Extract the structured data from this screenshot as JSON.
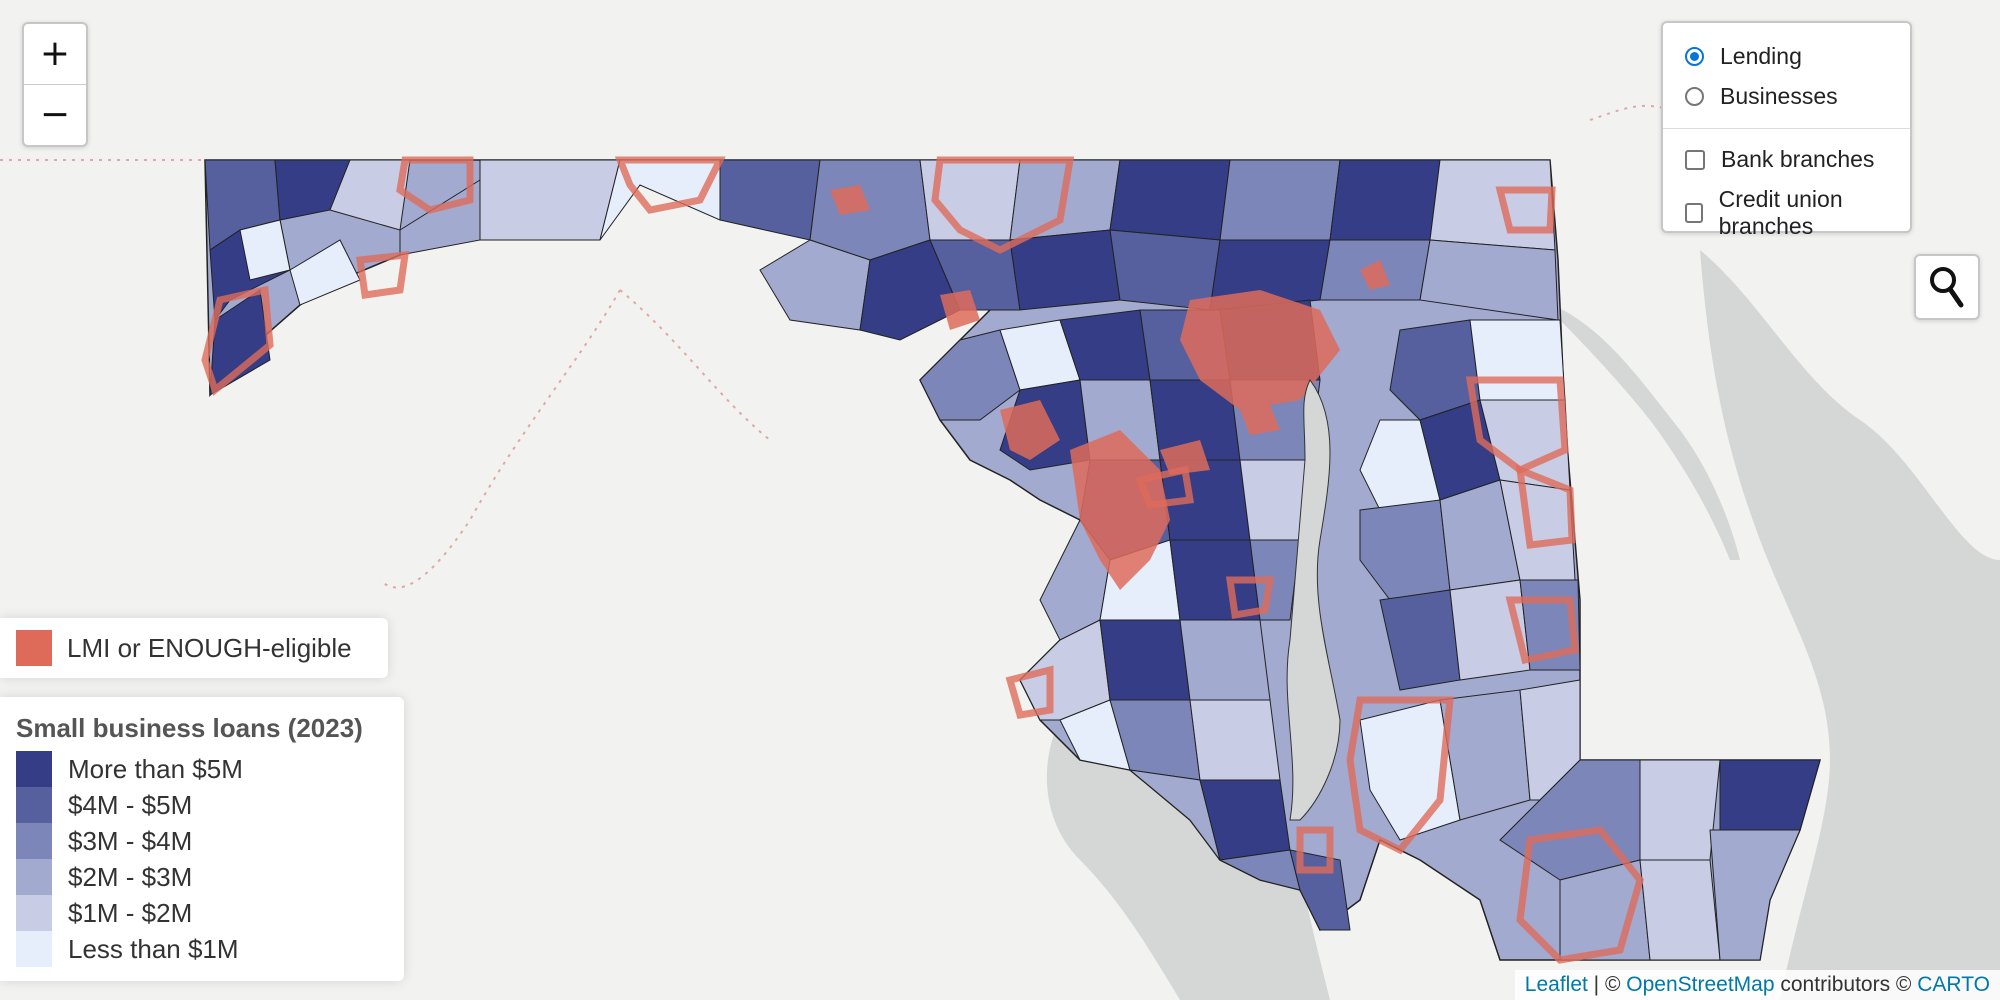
{
  "zoom": {
    "in_label": "+",
    "out_label": "−"
  },
  "layers": {
    "base": [
      {
        "label": "Lending",
        "selected": true
      },
      {
        "label": "Businesses",
        "selected": false
      }
    ],
    "overlays": [
      {
        "label": "Bank branches",
        "checked": false
      },
      {
        "label": "Credit union branches",
        "checked": false
      }
    ]
  },
  "search": {
    "icon": "search-icon"
  },
  "legend_lmi": {
    "label": "LMI or ENOUGH-eligible",
    "color": "#de6b5a"
  },
  "legend_loans": {
    "title": "Small business loans (2023)",
    "items": [
      {
        "label": "More than $5M",
        "color": "#343d86"
      },
      {
        "label": "$4M - $5M",
        "color": "#56609f"
      },
      {
        "label": "$3M - $4M",
        "color": "#7d86b8"
      },
      {
        "label": "$2M - $3M",
        "color": "#a2aad0"
      },
      {
        "label": "$1M - $2M",
        "color": "#c8cde5"
      },
      {
        "label": "Less than $1M",
        "color": "#e6eefb"
      }
    ]
  },
  "attribution": {
    "leaflet": "Leaflet",
    "sep": " | © ",
    "osm": "OpenStreetMap",
    "contributors": " contributors © ",
    "carto": "CARTO"
  }
}
